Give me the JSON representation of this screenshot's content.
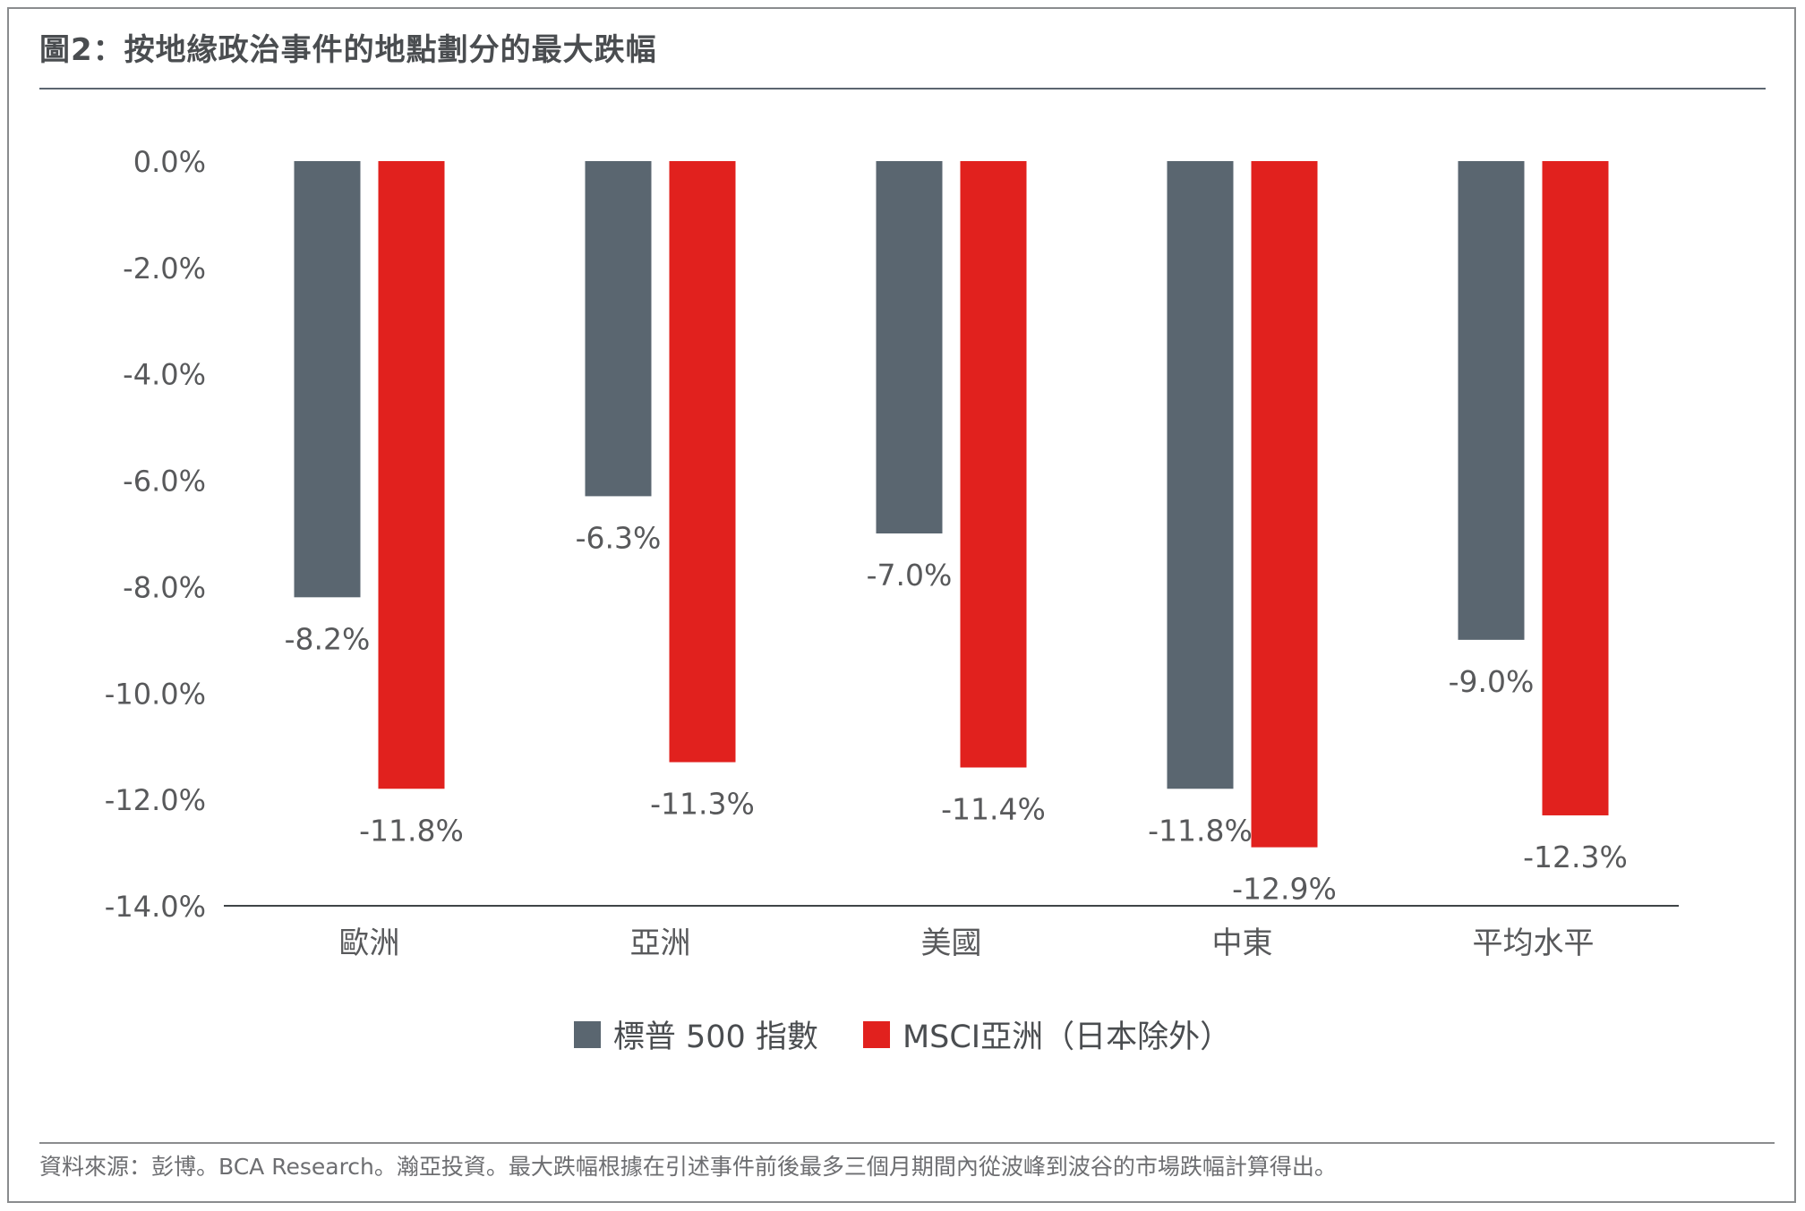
{
  "title": "圖2：按地緣政治事件的地點劃分的最大跌幅",
  "footer": "資料來源：彭博。BCA Research。瀚亞投資。最大跌幅根據在引述事件前後最多三個月期間內從波峰到波谷的市場跌幅計算得出。",
  "colors": {
    "sp500": "#5a6670",
    "msci": "#e1211e"
  },
  "legend": {
    "series1": "標普 500 指數",
    "series2": "MSCI亞洲（日本除外）"
  },
  "chart_data": {
    "type": "bar",
    "title": "圖2：按地緣政治事件的地點劃分的最大跌幅",
    "categories": [
      "歐洲",
      "亞洲",
      "美國",
      "中東",
      "平均水平"
    ],
    "series": [
      {
        "name": "標普 500 指數",
        "values": [
          -8.2,
          -6.3,
          -7.0,
          -11.8,
          -9.0
        ]
      },
      {
        "name": "MSCI亞洲（日本除外）",
        "values": [
          -11.8,
          -11.3,
          -11.4,
          -12.9,
          -12.3
        ]
      }
    ],
    "data_labels": [
      [
        "-8.2%",
        "-6.3%",
        "-7.0%",
        "-11.8%",
        "-9.0%"
      ],
      [
        "-11.8%",
        "-11.3%",
        "-11.4%",
        "-12.9%",
        "-12.3%"
      ]
    ],
    "ylim": [
      -14.0,
      0.0
    ],
    "yticks": [
      "0.0%",
      "-2.0%",
      "-4.0%",
      "-6.0%",
      "-8.0%",
      "-10.0%",
      "-12.0%",
      "-14.0%"
    ],
    "ytick_values": [
      0,
      -2,
      -4,
      -6,
      -8,
      -10,
      -12,
      -14
    ],
    "xlabel": "",
    "ylabel": "",
    "grid": false,
    "legend_position": "bottom"
  }
}
